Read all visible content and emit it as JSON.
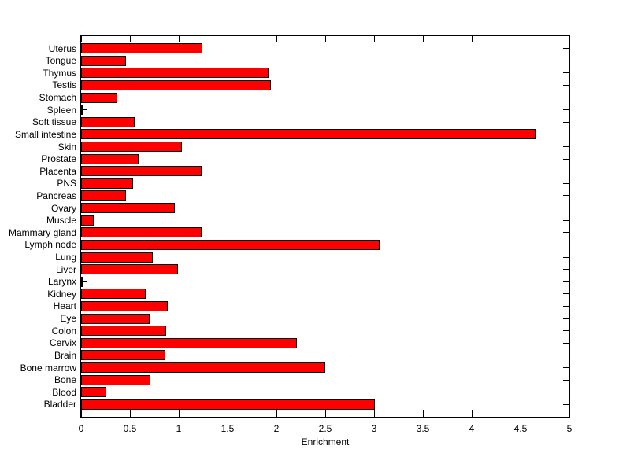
{
  "chart_data": {
    "type": "bar",
    "orientation": "horizontal",
    "title": "",
    "xlabel": "Enrichment",
    "ylabel": "",
    "xlim": [
      0,
      5
    ],
    "x_ticks": [
      0,
      0.5,
      1,
      1.5,
      2,
      2.5,
      3,
      3.5,
      4,
      4.5,
      5
    ],
    "x_tick_labels": [
      "0",
      "0.5",
      "1",
      "1.5",
      "2",
      "2.5",
      "3",
      "3.5",
      "4",
      "4.5",
      "5"
    ],
    "grid": false,
    "legend": null,
    "bar_color": "#FF0000",
    "bar_edge_color": "#000000",
    "axis_color": "#000000",
    "categories": [
      "Uterus",
      "Tongue",
      "Thymus",
      "Testis",
      "Stomach",
      "Spleen",
      "Soft tissue",
      "Small intestine",
      "Skin",
      "Prostate",
      "Placenta",
      "PNS",
      "Pancreas",
      "Ovary",
      "Muscle",
      "Mammary gland",
      "Lymph node",
      "Lung",
      "Liver",
      "Larynx",
      "Kidney",
      "Heart",
      "Eye",
      "Colon",
      "Cervix",
      "Brain",
      "Bone marrow",
      "Bone",
      "Blood",
      "Bladder"
    ],
    "values": [
      1.24,
      0.46,
      1.92,
      1.94,
      0.37,
      0.02,
      0.55,
      4.65,
      1.03,
      0.59,
      1.23,
      0.53,
      0.46,
      0.96,
      0.13,
      1.23,
      3.06,
      0.73,
      0.99,
      0.02,
      0.66,
      0.89,
      0.7,
      0.87,
      2.21,
      0.86,
      2.5,
      0.71,
      0.26,
      3.01
    ]
  }
}
